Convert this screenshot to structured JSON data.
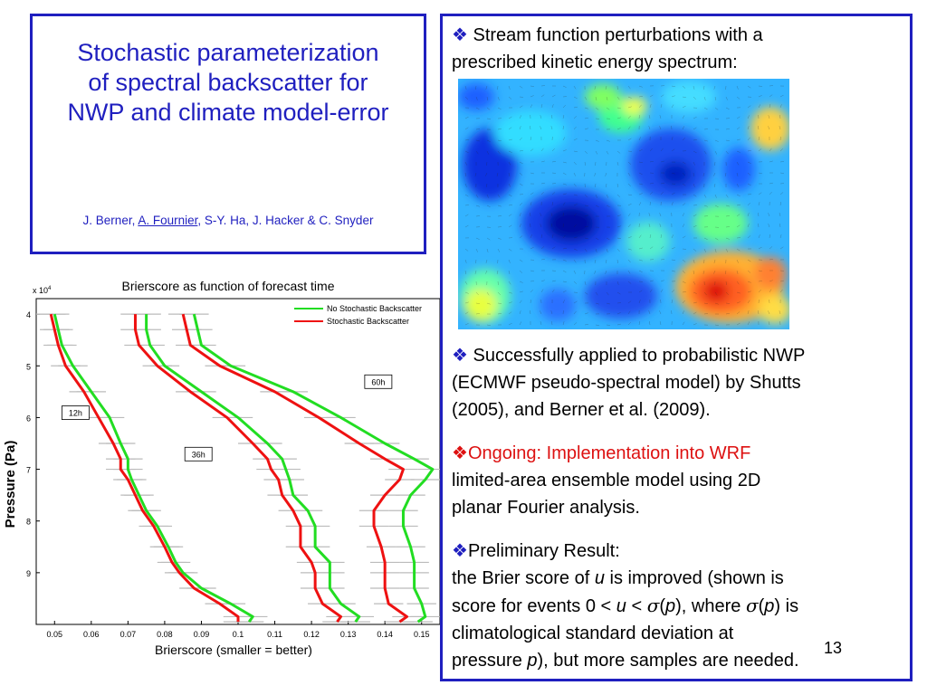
{
  "title_box": {
    "title_line1": "Stochastic parameterization",
    "title_line2": "of spectral backscatter for",
    "title_line3": "NWP and climate model-error",
    "authors_prefix": "J. Berner, ",
    "authors_underlined": "A. Fournier",
    "authors_suffix": ", S-Y. Ha, J. Hacker & C. Snyder"
  },
  "right": {
    "bullet_symbol": "❖",
    "b1_line1": " Stream function perturbations with a",
    "b1_line2": "prescribed kinetic energy spectrum:",
    "b2_line1": " Successfully applied to probabilistic NWP",
    "b2_line2": "(ECMWF pseudo-spectral model) by Shutts",
    "b2_line3": "(2005), and Berner et al. (2009).",
    "b3_red": "Ongoing: Implementation into WRF",
    "b3_line2": "limited-area ensemble model using 2D",
    "b3_line3": "planar Fourier analysis.",
    "b4_line1": "Preliminary Result:",
    "b4_line2a": "the Brier score of ",
    "b4_u": "u",
    "b4_line2b": " is improved (shown is",
    "b4_line3a": "score for events 0 < ",
    "b4_line3b": "u",
    "b4_line3c": " < ",
    "b4_sigma": "σ",
    "b4_p1": "p",
    "b4_line3d": "), where ",
    "b4_sigma2": "σ",
    "b4_p2": "p",
    "b4_line3e": ") is",
    "b4_line4": "climatological standard deviation at",
    "b4_line5a": "pressure ",
    "b4_p3": "p",
    "b4_line5b": "), but more samples are needed.",
    "open_paren": "(",
    "open_paren_after_sigma2": "("
  },
  "slide_number": "13",
  "colors": {
    "frame": "#1f1fbf",
    "green": "#22dd22",
    "red": "#ee1111",
    "bullet": "#1f1fbf"
  },
  "chart_data": {
    "type": "line",
    "title": "Brierscore as function of forecast time",
    "xlabel": "Brierscore (smaller = better)",
    "ylabel": "Pressure (Pa)",
    "y_scale_label": "x 10",
    "y_scale_exp": "4",
    "xlim": [
      0.045,
      0.155
    ],
    "ylim": [
      3.7,
      10
    ],
    "y_inverted": true,
    "x_ticks": [
      "0.05",
      "0.06",
      "0.07",
      "0.08",
      "0.09",
      "0.1",
      "0.11",
      "0.12",
      "0.13",
      "0.14",
      "0.15"
    ],
    "y_ticks": [
      "4",
      "5",
      "6",
      "7",
      "8",
      "9"
    ],
    "legend": [
      "No Stochastic Backscatter",
      "Stochastic Backscatter"
    ],
    "legend_position": "top-right",
    "annotations": [
      "12h",
      "36h",
      "60h"
    ],
    "pressure": [
      4.0,
      4.3,
      4.6,
      5.0,
      5.5,
      6.0,
      6.5,
      6.8,
      7.0,
      7.2,
      7.5,
      7.8,
      8.1,
      8.5,
      8.8,
      9.0,
      9.3,
      9.6,
      9.85,
      9.95
    ],
    "series": [
      {
        "name": "No Stochastic Backscatter",
        "group": "12h",
        "values": [
          0.05,
          0.051,
          0.052,
          0.055,
          0.06,
          0.065,
          0.068,
          0.07,
          0.07,
          0.071,
          0.073,
          0.075,
          0.078,
          0.081,
          0.083,
          0.085,
          0.09,
          0.098,
          0.104,
          0.103
        ]
      },
      {
        "name": "Stochastic Backscatter",
        "group": "12h",
        "values": [
          0.049,
          0.05,
          0.051,
          0.053,
          0.058,
          0.062,
          0.066,
          0.068,
          0.068,
          0.07,
          0.072,
          0.074,
          0.077,
          0.08,
          0.082,
          0.084,
          0.088,
          0.095,
          0.1,
          0.1
        ]
      },
      {
        "name": "No Stochastic Backscatter",
        "group": "36h",
        "values": [
          0.075,
          0.075,
          0.076,
          0.08,
          0.09,
          0.1,
          0.108,
          0.112,
          0.113,
          0.114,
          0.115,
          0.119,
          0.121,
          0.121,
          0.125,
          0.125,
          0.125,
          0.128,
          0.133,
          0.132
        ]
      },
      {
        "name": "Stochastic Backscatter",
        "group": "36h",
        "values": [
          0.072,
          0.072,
          0.073,
          0.078,
          0.087,
          0.097,
          0.104,
          0.108,
          0.109,
          0.111,
          0.112,
          0.115,
          0.117,
          0.117,
          0.12,
          0.121,
          0.121,
          0.123,
          0.128,
          0.127
        ]
      },
      {
        "name": "No Stochastic Backscatter",
        "group": "60h",
        "values": [
          0.088,
          0.089,
          0.09,
          0.098,
          0.115,
          0.128,
          0.14,
          0.148,
          0.153,
          0.151,
          0.147,
          0.145,
          0.145,
          0.147,
          0.148,
          0.148,
          0.148,
          0.15,
          0.151,
          0.149
        ]
      },
      {
        "name": "Stochastic Backscatter",
        "group": "60h",
        "values": [
          0.085,
          0.086,
          0.087,
          0.095,
          0.11,
          0.122,
          0.133,
          0.14,
          0.145,
          0.144,
          0.14,
          0.137,
          0.137,
          0.139,
          0.14,
          0.14,
          0.14,
          0.141,
          0.146,
          0.144
        ]
      }
    ]
  }
}
